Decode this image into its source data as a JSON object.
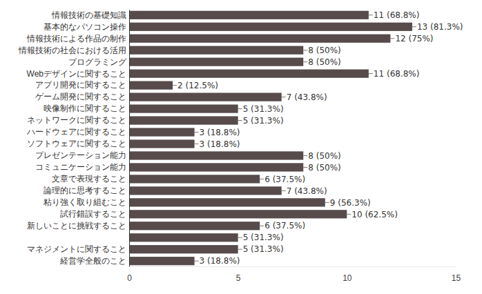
{
  "chart_data": {
    "type": "bar",
    "orientation": "horizontal",
    "data_labels": true,
    "grid": false,
    "color": "#574b4b",
    "categories": [
      "情報技術の基礎知識",
      "基本的なパソコン操作",
      "情報技術による作品の制作",
      "情報技術の社会における活用",
      "プログラミング",
      "Webデザインに関すること",
      "アプリ開発に関すること",
      "ゲーム開発に関すること",
      "映像制作に関すること",
      "ネットワークに関すること",
      "ハードウェアに関すること",
      "ソフトウェアに関すること",
      "プレゼンテーション能力",
      "コミュニケーション能力",
      "文章で表現すること",
      "論理的に思考すること",
      "粘り強く取り組むこと",
      "試行錯誤すること",
      "新しいことに挑戦すること",
      null,
      "マネジメントに関すること",
      "経営学全般のこと"
    ],
    "values": [
      11,
      13,
      12,
      8,
      8,
      11,
      2,
      7,
      5,
      5,
      3,
      3,
      8,
      8,
      6,
      7,
      9,
      10,
      6,
      5,
      5,
      3
    ],
    "value_labels": [
      "11 (68.8%)",
      "13 (81.3%)",
      "12 (75%)",
      "8 (50%)",
      "8 (50%)",
      "11 (68.8%)",
      "2 (12.5%)",
      "7 (43.8%)",
      "5 (31.3%)",
      "5 (31.3%)",
      "3 (18.8%)",
      "3 (18.8%)",
      "8 (50%)",
      "8 (50%)",
      "6 (37.5%)",
      "7 (43.8%)",
      "9 (56.3%)",
      "10 (62.5%)",
      "6 (37.5%)",
      "5 (31.3%)",
      "5 (31.3%)",
      "3 (18.8%)"
    ],
    "xlim": [
      0,
      15
    ],
    "xticks": [
      0,
      5,
      10,
      15
    ]
  }
}
